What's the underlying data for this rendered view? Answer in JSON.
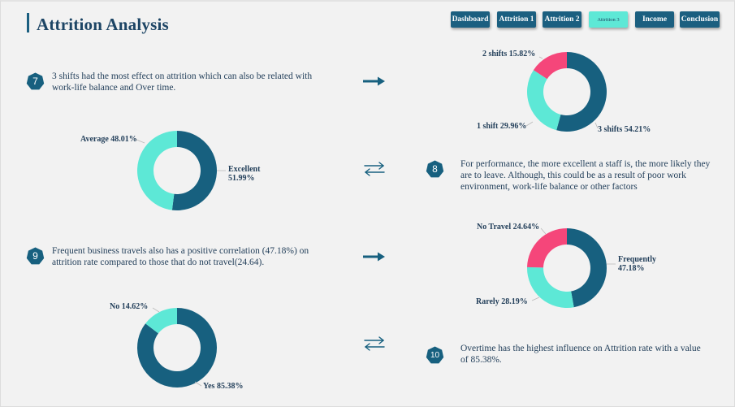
{
  "page": {
    "title": "Attrition Analysis"
  },
  "nav": [
    {
      "label": "Dashboard",
      "active": false
    },
    {
      "label": "Attrition 1",
      "active": false
    },
    {
      "label": "Attrition 2",
      "active": false
    },
    {
      "label": "Attrition 3",
      "active": true
    },
    {
      "label": "Income",
      "active": false
    },
    {
      "label": "Conclusion",
      "active": false
    }
  ],
  "notes": [
    {
      "number": "7",
      "text": "3 shifts had the most effect on attrition which can also be related with work-life balance and Over time."
    },
    {
      "number": "8",
      "text": "For performance, the more excellent a staff is, the more likely they are to leave. Although, this could be as a result of poor work environment, work-life balance or other factors"
    },
    {
      "number": "9",
      "text": "Frequent business travels also has a positive correlation (47.18%) on attrition rate compared to those that do not travel(24.64)."
    },
    {
      "number": "10",
      "text": "Overtime has the highest influence on Attrition rate with a value of 85.38%."
    }
  ],
  "colors": {
    "navy": "#17607f",
    "teal": "#5de8d6",
    "pink": "#f5467a",
    "text": "#24405b"
  },
  "icons": {
    "right_arrow": "right-arrow-icon",
    "swap_arrows": "swap-arrows-icon",
    "badge": "heptagon-badge-icon"
  },
  "chart_data": [
    {
      "type": "pie",
      "name": "shifts",
      "slices": [
        {
          "label": "3 shifts",
          "value": 54.21,
          "display": "3 shifts 54.21%",
          "color": "#17607f"
        },
        {
          "label": "1 shift",
          "value": 29.96,
          "display": "1 shift 29.96%",
          "color": "#5de8d6"
        },
        {
          "label": "2 shifts",
          "value": 15.82,
          "display": "2 shifts 15.82%",
          "color": "#f5467a"
        }
      ]
    },
    {
      "type": "pie",
      "name": "performance",
      "slices": [
        {
          "label": "Excellent",
          "value": 51.99,
          "display": [
            "Excellent",
            "51.99%"
          ],
          "color": "#17607f"
        },
        {
          "label": "Average",
          "value": 48.01,
          "display": "Average 48.01%",
          "color": "#5de8d6"
        }
      ]
    },
    {
      "type": "pie",
      "name": "travel",
      "slices": [
        {
          "label": "Frequently",
          "value": 47.18,
          "display": [
            "Frequently",
            "47.18%"
          ],
          "color": "#17607f"
        },
        {
          "label": "Rarely",
          "value": 28.19,
          "display": "Rarely 28.19%",
          "color": "#5de8d6"
        },
        {
          "label": "No Travel",
          "value": 24.64,
          "display": "No Travel 24.64%",
          "color": "#f5467a"
        }
      ]
    },
    {
      "type": "pie",
      "name": "overtime",
      "slices": [
        {
          "label": "Yes",
          "value": 85.38,
          "display": "Yes 85.38%",
          "color": "#17607f"
        },
        {
          "label": "No",
          "value": 14.62,
          "display": "No 14.62%",
          "color": "#5de8d6"
        }
      ]
    }
  ]
}
